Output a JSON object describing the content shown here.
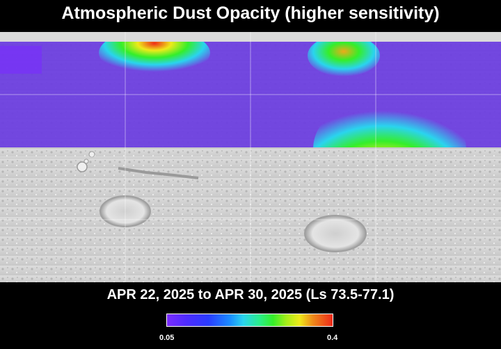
{
  "title": "Atmospheric Dust Opacity (higher sensitivity)",
  "date_range": "APR 22, 2025 to APR 30, 2025 (Ls 73.5-77.1)",
  "colorbar": {
    "min_label": "0.05",
    "max_label": "0.4",
    "colors": [
      "#7a2cff",
      "#2a3cff",
      "#2ad4ee",
      "#35ee2a",
      "#eeea1a",
      "#ee2a1a"
    ]
  },
  "map": {
    "background": "shaded-relief Mars basemap",
    "base_color": "#6a3ce0",
    "dust_hotspots": [
      {
        "region": "north-west high latitudes",
        "peak_level": "high"
      },
      {
        "region": "north-central high latitudes",
        "peak_level": "moderate"
      },
      {
        "region": "equatorial east",
        "peak_level": "high"
      }
    ]
  }
}
